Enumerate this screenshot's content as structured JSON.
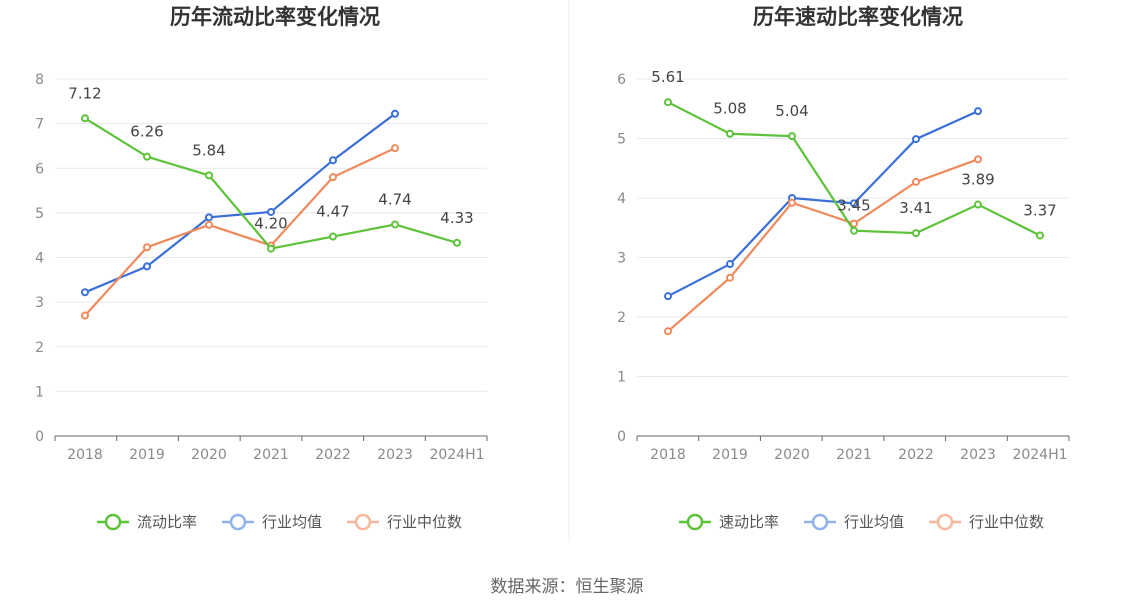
{
  "chart_data": [
    {
      "type": "line",
      "title": "历年流动比率变化情况",
      "categories": [
        "2018",
        "2019",
        "2020",
        "2021",
        "2022",
        "2023",
        "2024H1"
      ],
      "ylim": [
        0,
        8
      ],
      "yticks": [
        "0",
        "1",
        "2",
        "3",
        "4",
        "5",
        "6",
        "7",
        "8"
      ],
      "grid": true,
      "legend_position": "bottom",
      "series": [
        {
          "name": "流动比率",
          "color": "#5cc23a",
          "values": [
            7.12,
            6.26,
            5.84,
            4.2,
            4.47,
            4.74,
            4.33
          ],
          "labels": [
            "7.12",
            "6.26",
            "5.84",
            "4.20",
            "4.47",
            "4.74",
            "4.33"
          ]
        },
        {
          "name": "行业均值",
          "color": "#3a6fd8",
          "values": [
            3.22,
            3.8,
            4.9,
            5.02,
            6.18,
            7.22,
            null
          ]
        },
        {
          "name": "行业中位数",
          "color": "#f08a5d",
          "values": [
            2.7,
            4.23,
            4.73,
            4.27,
            5.8,
            6.45,
            null
          ]
        }
      ]
    },
    {
      "type": "line",
      "title": "历年速动比率变化情况",
      "categories": [
        "2018",
        "2019",
        "2020",
        "2021",
        "2022",
        "2023",
        "2024H1"
      ],
      "ylim": [
        0,
        6
      ],
      "yticks": [
        "0",
        "1",
        "2",
        "3",
        "4",
        "5",
        "6"
      ],
      "grid": true,
      "legend_position": "bottom",
      "series": [
        {
          "name": "速动比率",
          "color": "#5cc23a",
          "values": [
            5.61,
            5.08,
            5.04,
            3.45,
            3.41,
            3.89,
            3.37
          ],
          "labels": [
            "5.61",
            "5.08",
            "5.04",
            "3.45",
            "3.41",
            "3.89",
            "3.37"
          ]
        },
        {
          "name": "行业均值",
          "color": "#3a6fd8",
          "values": [
            2.35,
            2.89,
            4.0,
            3.91,
            4.99,
            5.46,
            null
          ]
        },
        {
          "name": "行业中位数",
          "color": "#f08a5d",
          "values": [
            1.76,
            2.66,
            3.92,
            3.57,
            4.27,
            4.65,
            null
          ]
        }
      ]
    }
  ],
  "source_text": "数据来源：恒生聚源"
}
